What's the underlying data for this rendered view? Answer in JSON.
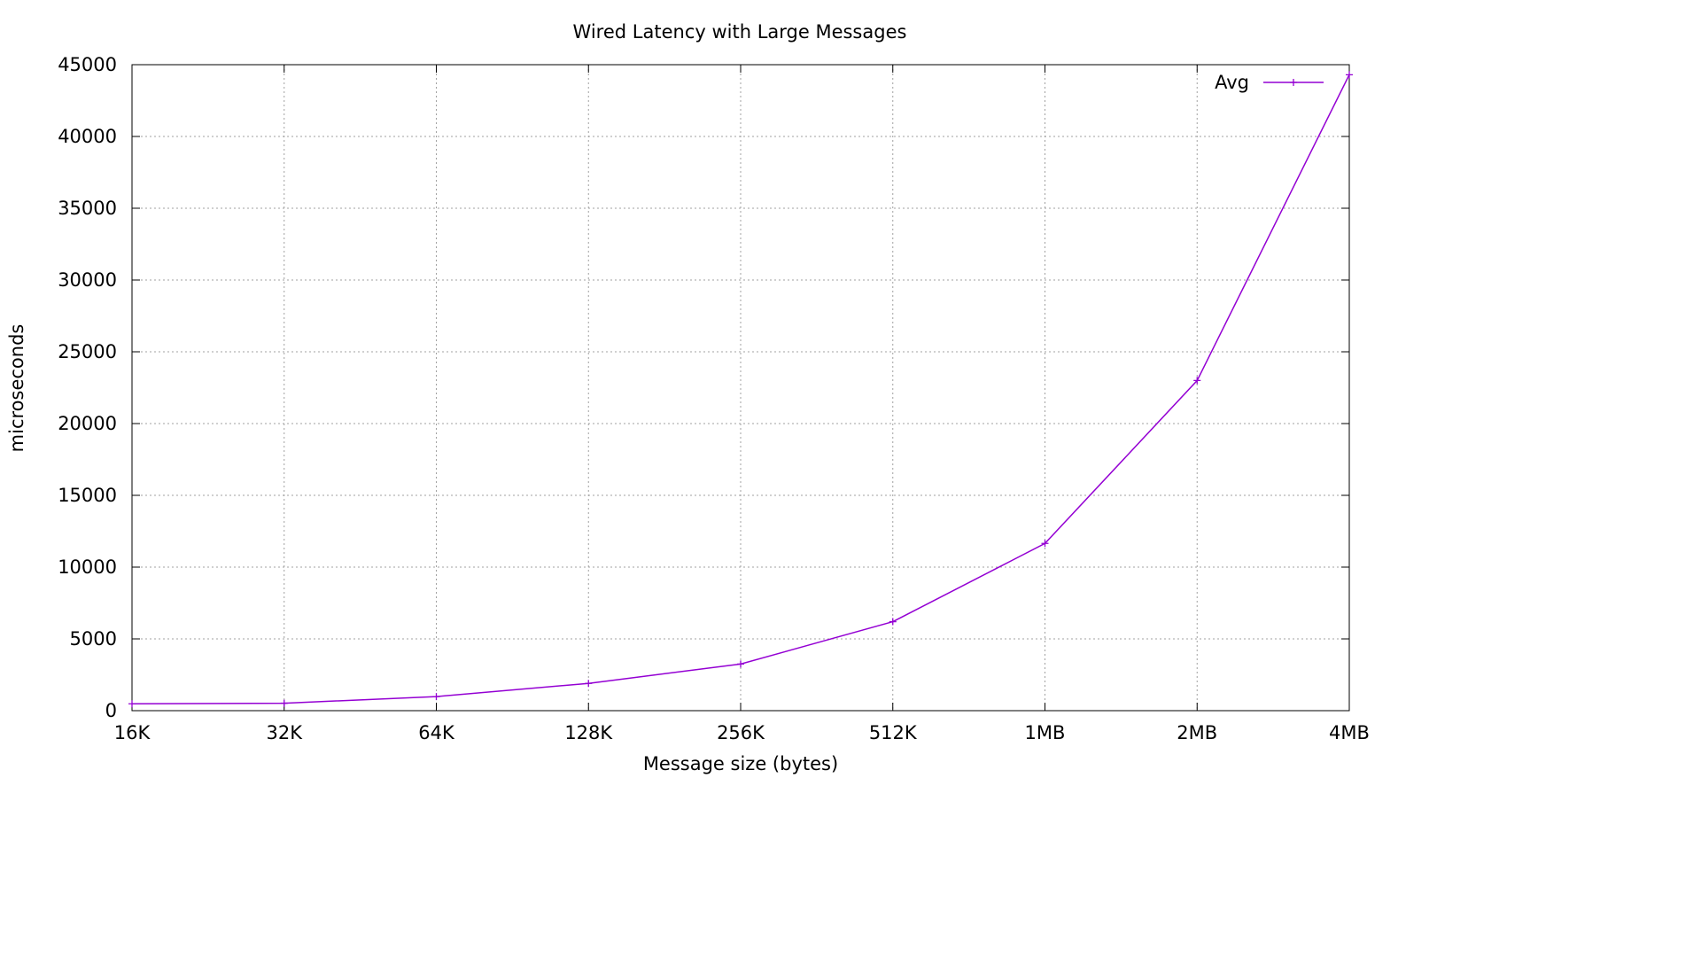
{
  "chart_data": {
    "type": "line",
    "title": "Wired Latency with Large Messages",
    "xlabel": "Message size (bytes)",
    "ylabel": "microseconds",
    "categories": [
      "16K",
      "32K",
      "64K",
      "128K",
      "256K",
      "512K",
      "1MB",
      "2MB",
      "4MB"
    ],
    "series": [
      {
        "name": "Avg",
        "color": "#9400d3",
        "values": [
          480,
          520,
          980,
          1900,
          3250,
          6200,
          11650,
          23000,
          44300
        ]
      }
    ],
    "ylim": [
      0,
      45000
    ],
    "yticks": [
      0,
      5000,
      10000,
      15000,
      20000,
      25000,
      30000,
      35000,
      40000,
      45000
    ],
    "grid": true,
    "legend_position": "top-right",
    "marker": "plus"
  }
}
